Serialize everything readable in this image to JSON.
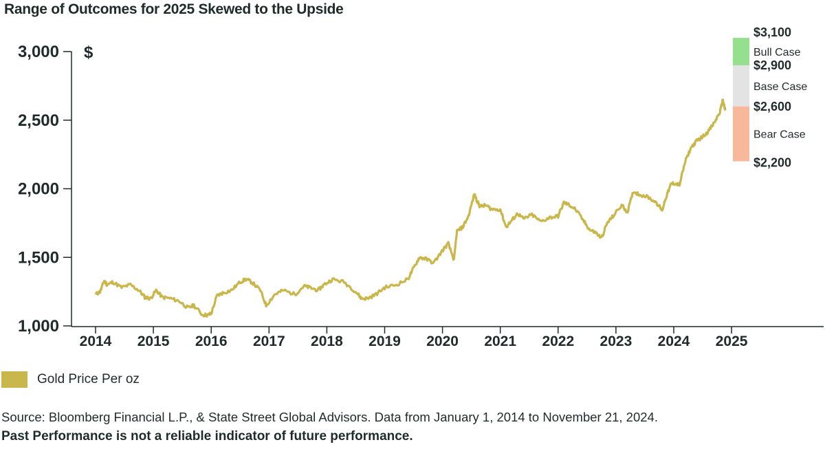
{
  "title": "Range of Outcomes for 2025 Skewed to the Upside",
  "legend": {
    "label": "Gold Price Per oz",
    "color": "#c9b74c"
  },
  "source_note": "Source: Bloomberg Financial L.P., & State Street Global Advisors. Data from January 1, 2014 to November 21, 2024.",
  "disclaimer": "Past Performance is not a reliable indicator of future performance.",
  "chart_data": {
    "type": "line",
    "title": "Range of Outcomes for 2025 Skewed to the Upside",
    "xlabel": "",
    "ylabel": "$",
    "ylim": [
      1000,
      3000
    ],
    "yticks": [
      1000,
      1500,
      2000,
      2500,
      3000
    ],
    "ytick_labels": [
      "1,000",
      "1,500",
      "2,000",
      "2,500",
      "3,000"
    ],
    "xticks": [
      2014,
      2015,
      2016,
      2017,
      2018,
      2019,
      2020,
      2021,
      2022,
      2023,
      2024,
      2025
    ],
    "xtick_labels": [
      "2014",
      "2015",
      "2016",
      "2017",
      "2018",
      "2019",
      "2020",
      "2021",
      "2022",
      "2023",
      "2024",
      "2025"
    ],
    "grid": false,
    "series": [
      {
        "name": "Gold Price Per oz",
        "color": "#c9b74c",
        "x": [
          2014.0,
          2014.08,
          2014.15,
          2014.2,
          2014.3,
          2014.45,
          2014.6,
          2014.75,
          2014.85,
          2014.95,
          2015.05,
          2015.15,
          2015.3,
          2015.45,
          2015.6,
          2015.7,
          2015.85,
          2015.95,
          2016.0,
          2016.1,
          2016.2,
          2016.35,
          2016.5,
          2016.6,
          2016.7,
          2016.85,
          2016.95,
          2017.1,
          2017.25,
          2017.45,
          2017.6,
          2017.7,
          2017.85,
          2017.95,
          2018.1,
          2018.3,
          2018.5,
          2018.6,
          2018.7,
          2018.85,
          2019.0,
          2019.2,
          2019.4,
          2019.5,
          2019.6,
          2019.7,
          2019.85,
          2020.0,
          2020.1,
          2020.2,
          2020.25,
          2020.35,
          2020.45,
          2020.55,
          2020.6,
          2020.65,
          2020.75,
          2020.85,
          2021.0,
          2021.1,
          2021.2,
          2021.3,
          2021.4,
          2021.55,
          2021.7,
          2021.85,
          2022.0,
          2022.1,
          2022.2,
          2022.3,
          2022.45,
          2022.55,
          2022.65,
          2022.75,
          2022.85,
          2022.95,
          2023.1,
          2023.2,
          2023.3,
          2023.4,
          2023.55,
          2023.7,
          2023.8,
          2023.85,
          2023.95,
          2024.0,
          2024.1,
          2024.2,
          2024.3,
          2024.4,
          2024.5,
          2024.6,
          2024.7,
          2024.8,
          2024.85,
          2024.89
        ],
        "values": [
          1230,
          1250,
          1330,
          1300,
          1320,
          1280,
          1300,
          1260,
          1210,
          1200,
          1260,
          1210,
          1200,
          1180,
          1130,
          1150,
          1080,
          1080,
          1090,
          1220,
          1240,
          1260,
          1320,
          1340,
          1320,
          1260,
          1150,
          1230,
          1260,
          1230,
          1290,
          1280,
          1260,
          1300,
          1340,
          1320,
          1250,
          1200,
          1200,
          1230,
          1280,
          1300,
          1340,
          1420,
          1500,
          1490,
          1460,
          1550,
          1600,
          1480,
          1690,
          1720,
          1800,
          1960,
          1910,
          1870,
          1880,
          1850,
          1850,
          1720,
          1770,
          1820,
          1780,
          1810,
          1760,
          1790,
          1800,
          1900,
          1880,
          1850,
          1760,
          1700,
          1680,
          1640,
          1750,
          1800,
          1880,
          1830,
          1980,
          1960,
          1940,
          1900,
          1840,
          1920,
          2030,
          2040,
          2030,
          2200,
          2300,
          2350,
          2380,
          2420,
          2480,
          2560,
          2650,
          2570
        ]
      }
    ],
    "scenarios": [
      {
        "label": "Bull Case",
        "low": 2900,
        "high": 3100,
        "low_label": "$2,900",
        "high_label": "$3,100",
        "color": "#95e08f"
      },
      {
        "label": "Base Case",
        "low": 2600,
        "high": 2900,
        "low_label": "$2,600",
        "high_label": "$2,900",
        "color": "#e3e3e3"
      },
      {
        "label": "Bear Case",
        "low": 2200,
        "high": 2600,
        "low_label": "$2,200",
        "high_label": "$2,600",
        "color": "#f8b89c"
      }
    ]
  }
}
